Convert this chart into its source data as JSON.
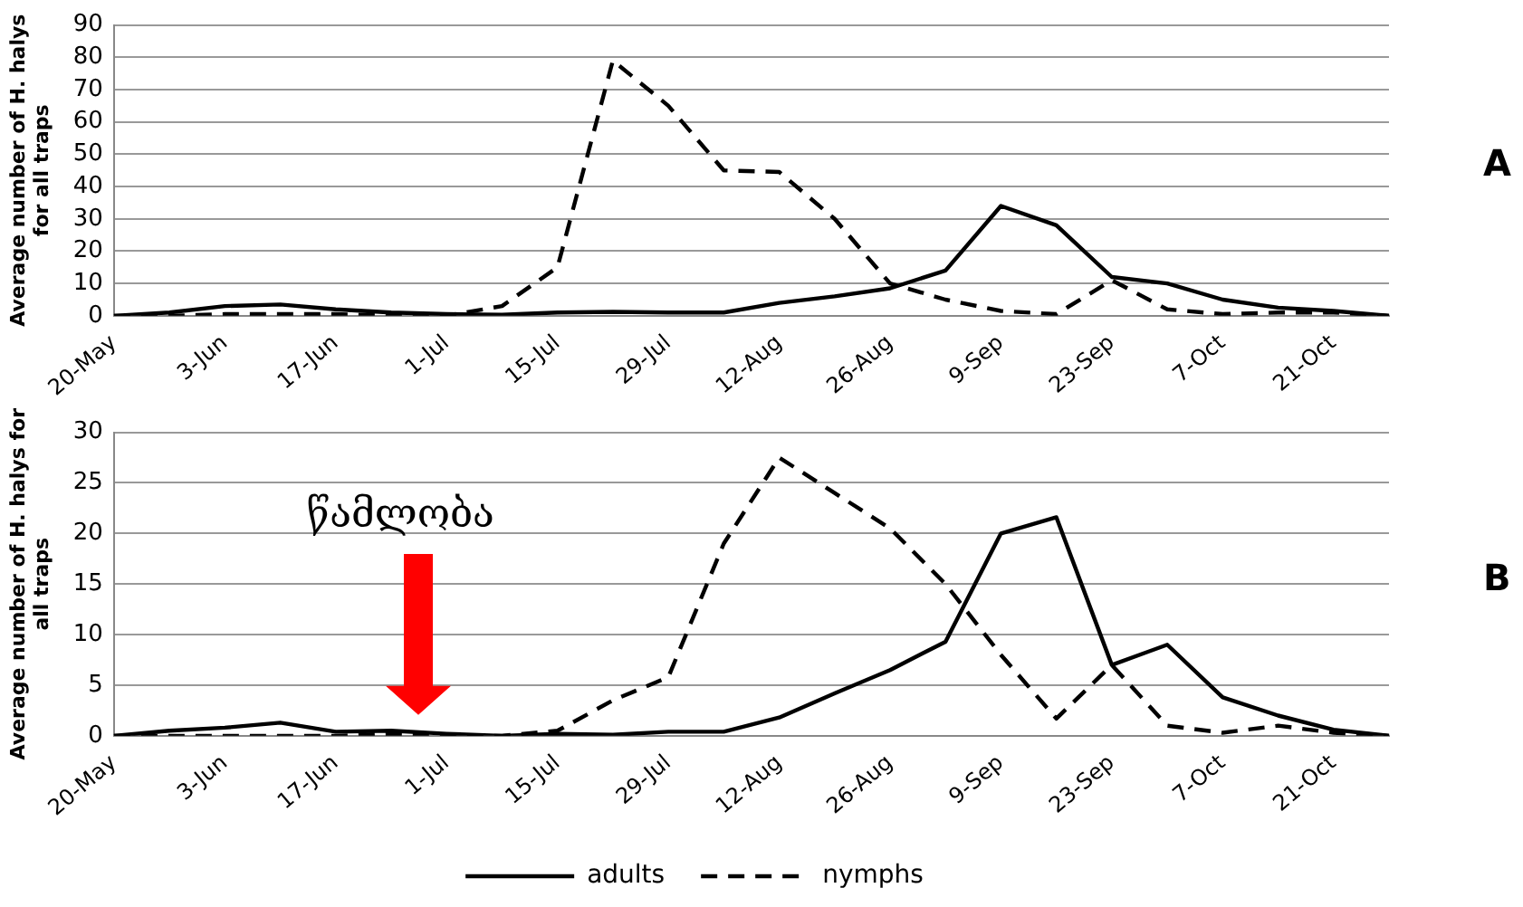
{
  "chart_data": [
    {
      "type": "line",
      "annotations": [
        "A"
      ],
      "ylabel": "Average number of H. halys for all traps",
      "categories": [
        "20-May",
        null,
        "3-Jun",
        null,
        "17-Jun",
        null,
        "1-Jul",
        null,
        "15-Jul",
        null,
        "29-Jul",
        null,
        "12-Aug",
        null,
        "26-Aug",
        null,
        "9-Sep",
        null,
        "23-Sep",
        null,
        "7-Oct",
        null,
        "21-Oct",
        null
      ],
      "series": [
        {
          "color": "#000000",
          "line_style": "solid",
          "values": [
            0,
            1,
            3,
            3.5,
            2,
            1,
            0.5,
            0.3,
            1,
            1.2,
            1,
            1,
            4,
            6,
            8.5,
            14,
            34,
            28,
            12,
            10,
            5,
            2.5,
            1.5,
            0
          ]
        },
        {
          "color": "#000000",
          "line_style": "dashed",
          "values": [
            0,
            0,
            0.5,
            0.5,
            0.5,
            0,
            0,
            3,
            15,
            79,
            65,
            45,
            44.5,
            30,
            10,
            5,
            1.5,
            0.5,
            11,
            2,
            0.5,
            1,
            1,
            0
          ]
        }
      ],
      "ylim": [
        0,
        90
      ],
      "yticks": [
        0,
        10,
        20,
        30,
        40,
        50,
        60,
        70,
        80,
        90
      ],
      "grid": "y",
      "legend": false,
      "marker": "none"
    },
    {
      "type": "line",
      "ylabel": "Average number of H. halys for all traps",
      "annotations": [
        "წამლობა",
        "B"
      ],
      "categories": [
        "20-May",
        null,
        "3-Jun",
        null,
        "17-Jun",
        null,
        "1-Jul",
        null,
        "15-Jul",
        null,
        "29-Jul",
        null,
        "12-Aug",
        null,
        "26-Aug",
        null,
        "9-Sep",
        null,
        "23-Sep",
        null,
        "7-Oct",
        null,
        "21-Oct",
        null
      ],
      "series": [
        {
          "name": "adults",
          "color": "#000000",
          "line_style": "solid",
          "values": [
            0,
            0.5,
            0.8,
            1.3,
            0.4,
            0.5,
            0.2,
            0,
            0.2,
            0.1,
            0.4,
            0.4,
            1.8,
            4.2,
            6.5,
            9.3,
            20,
            21.6,
            7,
            9,
            3.8,
            2,
            0.6,
            0
          ]
        },
        {
          "name": "nymphs",
          "color": "#000000",
          "line_style": "dashed",
          "values": [
            0,
            0,
            0,
            0,
            0,
            0.2,
            0,
            0,
            0.5,
            3.5,
            5.8,
            19,
            27.5,
            24,
            20.5,
            15,
            8,
            1.7,
            7,
            1,
            0.3,
            1,
            0.3,
            0
          ]
        }
      ],
      "ylim": [
        0,
        30
      ],
      "yticks": [
        0,
        5,
        10,
        15,
        20,
        25,
        30
      ],
      "grid": "y",
      "legend": "bottom",
      "marker": "none"
    }
  ]
}
